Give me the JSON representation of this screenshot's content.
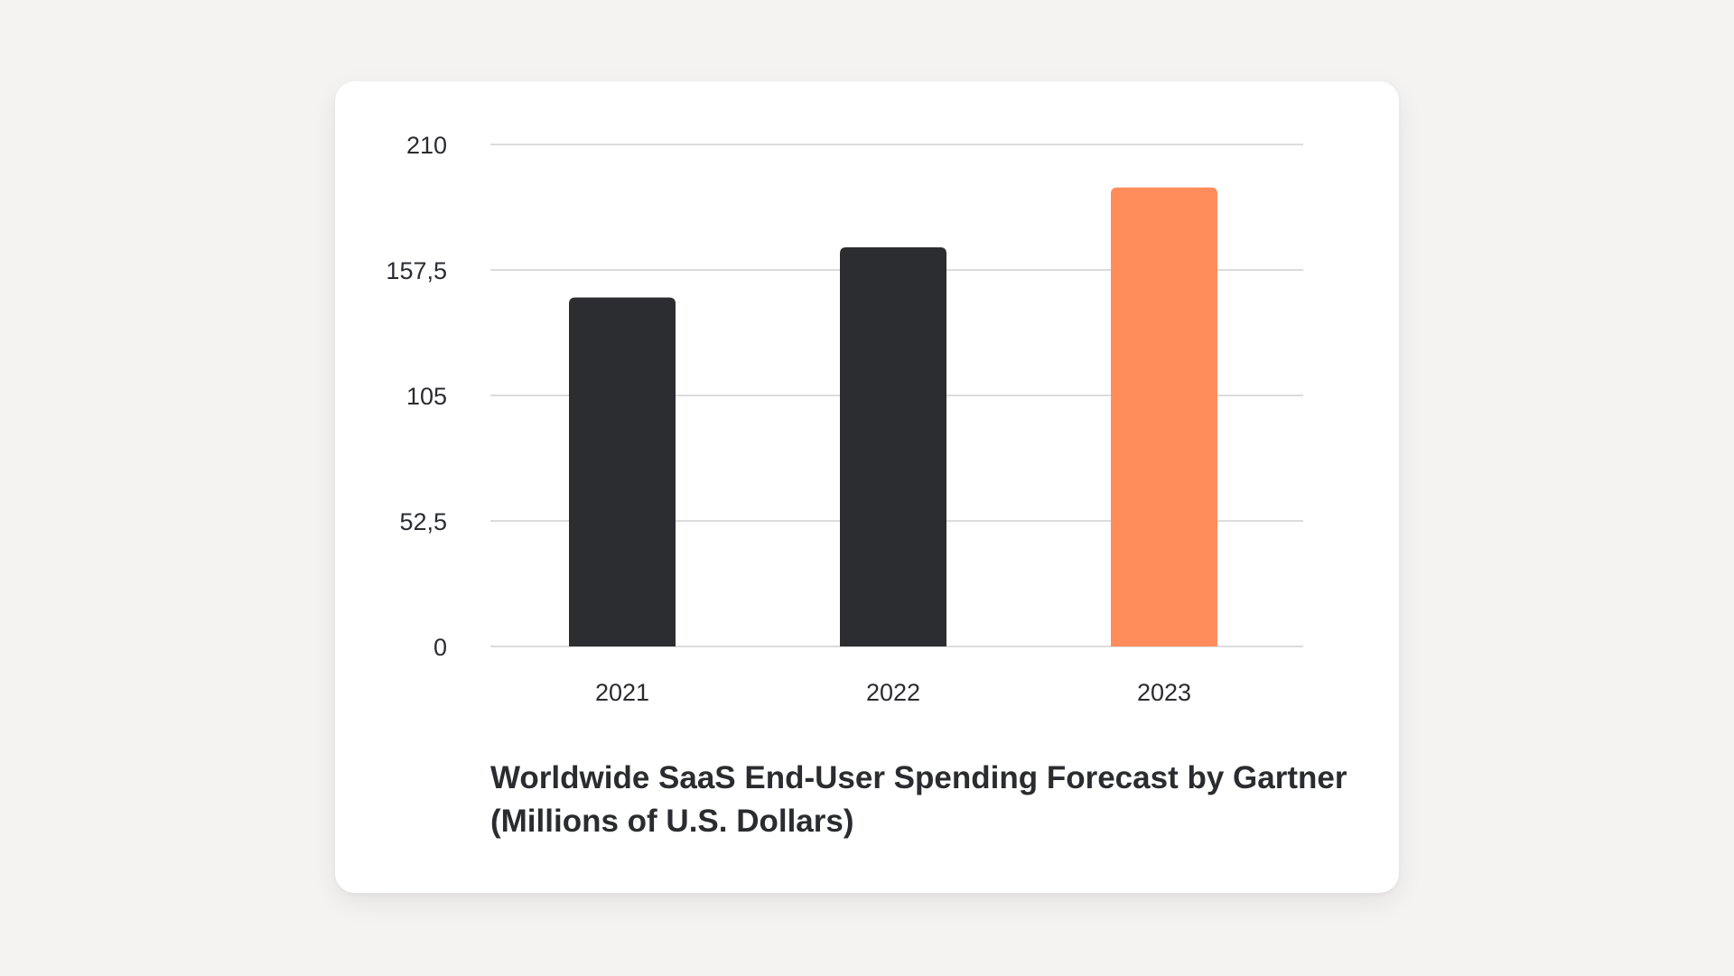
{
  "chart_data": {
    "type": "bar",
    "categories": [
      "2021",
      "2022",
      "2023"
    ],
    "values": [
      146,
      167,
      192
    ],
    "highlight_index": 2,
    "bar_colors": [
      "#2c2d31",
      "#2c2d31",
      "#ff8c5a"
    ],
    "gridline_color": "#dcdcdc",
    "ylim": [
      0,
      210
    ],
    "yticks": [
      0,
      52.5,
      105,
      157.5,
      210
    ],
    "ytick_labels": [
      "0",
      "52,5",
      "105",
      "157,5",
      "210"
    ],
    "title_lines": [
      "Worldwide SaaS End-User Spending Forecast by Gartner",
      "(Millions of U.S. Dollars)"
    ],
    "grid": true,
    "legend": "none"
  }
}
